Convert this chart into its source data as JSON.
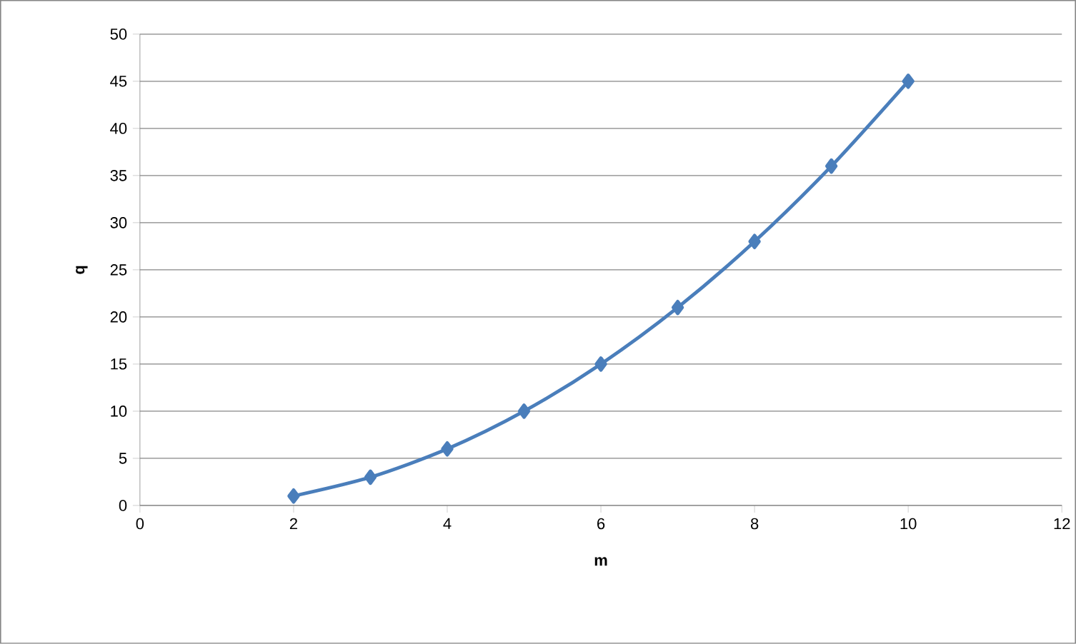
{
  "chart_data": {
    "type": "line",
    "xlabel": "m",
    "ylabel": "q",
    "x": [
      2,
      3,
      4,
      5,
      6,
      7,
      8,
      9,
      10
    ],
    "series": [
      {
        "color": "#4a7ebb",
        "values": [
          1,
          3,
          6,
          10,
          15,
          21,
          28,
          36,
          45
        ]
      }
    ],
    "xlim": [
      0,
      12
    ],
    "xticks": [
      0,
      2,
      4,
      6,
      8,
      10,
      12
    ],
    "ylim": [
      0,
      50
    ],
    "yticks": [
      0,
      5,
      10,
      15,
      20,
      25,
      30,
      35,
      40,
      45,
      50
    ],
    "grid": "y",
    "marker": "diamond",
    "line_style": "solid"
  }
}
